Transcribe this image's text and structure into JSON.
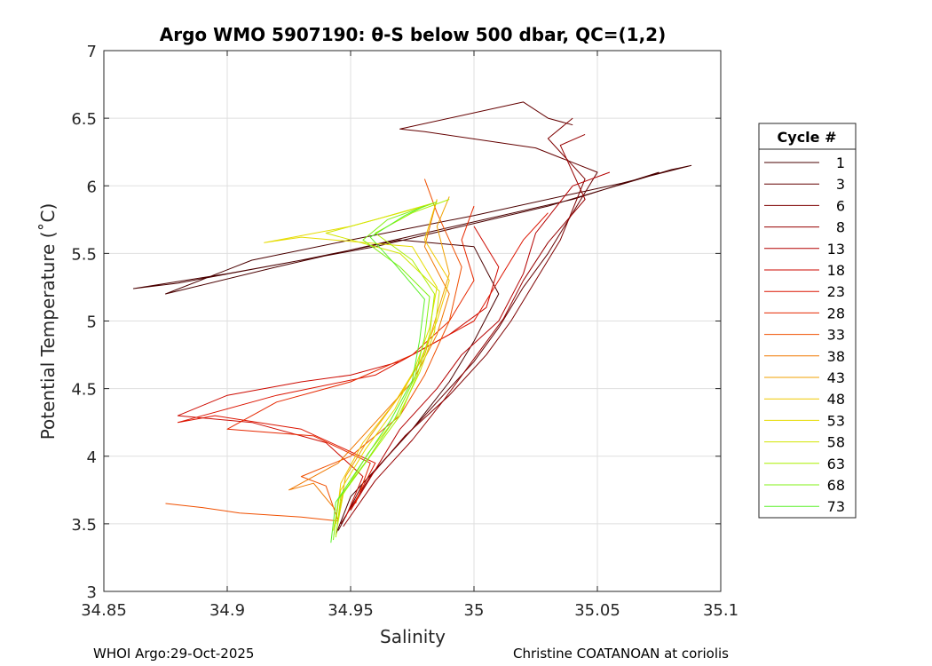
{
  "chart_data": {
    "type": "line",
    "title": "Argo WMO 5907190: θ-S below 500 dbar,  QC=(1,2)",
    "xlabel": "Salinity",
    "ylabel": "Potential Temperature (˚C)",
    "xlim": [
      34.85,
      35.1
    ],
    "ylim": [
      3,
      7
    ],
    "xticks": [
      34.85,
      34.9,
      34.95,
      35,
      35.05,
      35.1
    ],
    "xtick_labels": [
      "34.85",
      "34.9",
      "34.95",
      "35",
      "35.05",
      "35.1"
    ],
    "yticks": [
      3,
      3.5,
      4,
      4.5,
      5,
      5.5,
      6,
      6.5,
      7
    ],
    "ytick_labels": [
      "3",
      "3.5",
      "4",
      "4.5",
      "5",
      "5.5",
      "6",
      "6.5",
      "7"
    ],
    "grid": true,
    "legend_title": "Cycle #",
    "legend_position": "outside-right",
    "series": [
      {
        "name": "1",
        "color": "#4a0000",
        "points": [
          [
            34.944,
            3.42
          ],
          [
            34.95,
            3.7
          ],
          [
            34.96,
            3.9
          ],
          [
            34.975,
            4.2
          ],
          [
            34.99,
            4.55
          ],
          [
            35.0,
            4.85
          ],
          [
            35.01,
            5.2
          ],
          [
            35.0,
            5.55
          ],
          [
            34.97,
            5.6
          ],
          [
            34.93,
            5.45
          ],
          [
            34.88,
            5.28
          ],
          [
            34.862,
            5.24
          ],
          [
            34.9,
            5.35
          ],
          [
            34.96,
            5.55
          ],
          [
            35.03,
            5.85
          ],
          [
            35.08,
            6.12
          ],
          [
            35.088,
            6.15
          ],
          [
            35.06,
            6.02
          ],
          [
            35.0,
            5.78
          ],
          [
            34.95,
            5.6
          ],
          [
            34.91,
            5.45
          ],
          [
            34.875,
            5.2
          ],
          [
            34.92,
            5.4
          ],
          [
            34.98,
            5.65
          ],
          [
            35.04,
            5.9
          ],
          [
            35.075,
            6.1
          ]
        ]
      },
      {
        "name": "3",
        "color": "#640000",
        "points": [
          [
            34.945,
            3.45
          ],
          [
            34.955,
            3.8
          ],
          [
            34.97,
            4.1
          ],
          [
            34.985,
            4.4
          ],
          [
            35.0,
            4.7
          ],
          [
            35.01,
            4.95
          ],
          [
            35.02,
            5.25
          ],
          [
            35.03,
            5.5
          ],
          [
            35.04,
            5.8
          ],
          [
            35.05,
            6.1
          ],
          [
            35.025,
            6.28
          ],
          [
            34.98,
            6.4
          ],
          [
            34.97,
            6.42
          ],
          [
            35.02,
            6.62
          ],
          [
            35.03,
            6.5
          ],
          [
            35.04,
            6.45
          ]
        ]
      },
      {
        "name": "6",
        "color": "#7d0000",
        "points": [
          [
            34.946,
            3.5
          ],
          [
            34.958,
            3.85
          ],
          [
            34.972,
            4.15
          ],
          [
            34.99,
            4.45
          ],
          [
            35.005,
            4.75
          ],
          [
            35.015,
            5.0
          ],
          [
            35.025,
            5.3
          ],
          [
            35.035,
            5.6
          ],
          [
            35.045,
            6.05
          ],
          [
            35.03,
            6.35
          ],
          [
            35.04,
            6.5
          ]
        ]
      },
      {
        "name": "8",
        "color": "#960000",
        "points": [
          [
            34.947,
            3.48
          ],
          [
            34.96,
            3.82
          ],
          [
            34.975,
            4.12
          ],
          [
            34.988,
            4.42
          ],
          [
            35.0,
            4.72
          ],
          [
            35.012,
            5.02
          ],
          [
            35.02,
            5.3
          ],
          [
            35.03,
            5.58
          ],
          [
            35.045,
            5.9
          ],
          [
            35.035,
            6.3
          ],
          [
            35.045,
            6.38
          ]
        ]
      },
      {
        "name": "13",
        "color": "#b40000",
        "points": [
          [
            34.95,
            3.6
          ],
          [
            34.96,
            3.9
          ],
          [
            34.97,
            4.2
          ],
          [
            34.985,
            4.5
          ],
          [
            34.995,
            4.75
          ],
          [
            35.01,
            5.0
          ],
          [
            35.02,
            5.35
          ],
          [
            35.025,
            5.65
          ],
          [
            35.04,
            6.0
          ],
          [
            35.055,
            6.1
          ]
        ]
      },
      {
        "name": "18",
        "color": "#cd0a00",
        "points": [
          [
            34.948,
            3.55
          ],
          [
            34.955,
            3.85
          ],
          [
            34.94,
            4.1
          ],
          [
            34.91,
            4.25
          ],
          [
            34.88,
            4.3
          ],
          [
            34.9,
            4.45
          ],
          [
            34.93,
            4.55
          ],
          [
            34.95,
            4.6
          ],
          [
            34.97,
            4.7
          ],
          [
            34.99,
            4.9
          ],
          [
            35.005,
            5.1
          ],
          [
            35.01,
            5.4
          ],
          [
            35.0,
            5.7
          ]
        ]
      },
      {
        "name": "23",
        "color": "#dc1400",
        "points": [
          [
            34.95,
            3.6
          ],
          [
            34.96,
            3.95
          ],
          [
            34.93,
            4.2
          ],
          [
            34.895,
            4.3
          ],
          [
            34.88,
            4.25
          ],
          [
            34.92,
            4.45
          ],
          [
            34.96,
            4.6
          ],
          [
            34.98,
            4.8
          ],
          [
            35.0,
            5.0
          ],
          [
            35.01,
            5.3
          ],
          [
            35.02,
            5.6
          ],
          [
            35.03,
            5.8
          ]
        ]
      },
      {
        "name": "28",
        "color": "#e62800",
        "points": [
          [
            34.952,
            3.65
          ],
          [
            34.958,
            3.95
          ],
          [
            34.935,
            4.15
          ],
          [
            34.9,
            4.2
          ],
          [
            34.92,
            4.4
          ],
          [
            34.95,
            4.55
          ],
          [
            34.975,
            4.75
          ],
          [
            34.99,
            5.0
          ],
          [
            35.0,
            5.3
          ],
          [
            34.995,
            5.6
          ],
          [
            35.0,
            5.85
          ]
        ]
      },
      {
        "name": "33",
        "color": "#f05000",
        "points": [
          [
            34.875,
            3.65
          ],
          [
            34.89,
            3.62
          ],
          [
            34.905,
            3.58
          ],
          [
            34.93,
            3.55
          ],
          [
            34.945,
            3.52
          ],
          [
            34.94,
            3.78
          ],
          [
            34.93,
            3.85
          ],
          [
            34.95,
            4.0
          ],
          [
            34.97,
            4.3
          ],
          [
            34.98,
            4.6
          ],
          [
            34.99,
            5.0
          ],
          [
            34.995,
            5.4
          ],
          [
            34.985,
            5.8
          ],
          [
            34.98,
            6.05
          ]
        ]
      },
      {
        "name": "38",
        "color": "#f07800",
        "points": [
          [
            34.944,
            3.6
          ],
          [
            34.935,
            3.8
          ],
          [
            34.925,
            3.75
          ],
          [
            34.945,
            3.95
          ],
          [
            34.96,
            4.25
          ],
          [
            34.975,
            4.55
          ],
          [
            34.985,
            4.9
          ],
          [
            34.99,
            5.2
          ],
          [
            34.98,
            5.55
          ],
          [
            34.985,
            5.9
          ]
        ]
      },
      {
        "name": "43",
        "color": "#f0a000",
        "points": [
          [
            34.945,
            3.55
          ],
          [
            34.948,
            3.85
          ],
          [
            34.958,
            4.15
          ],
          [
            34.97,
            4.45
          ],
          [
            34.98,
            4.75
          ],
          [
            34.985,
            5.05
          ],
          [
            34.99,
            5.35
          ],
          [
            34.985,
            5.7
          ],
          [
            34.99,
            5.92
          ]
        ]
      },
      {
        "name": "48",
        "color": "#f0c800",
        "points": [
          [
            34.944,
            3.5
          ],
          [
            34.946,
            3.8
          ],
          [
            34.955,
            4.1
          ],
          [
            34.968,
            4.4
          ],
          [
            34.978,
            4.7
          ],
          [
            34.985,
            5.0
          ],
          [
            34.99,
            5.3
          ],
          [
            34.98,
            5.6
          ],
          [
            34.985,
            5.9
          ]
        ]
      },
      {
        "name": "53",
        "color": "#e6dc00",
        "points": [
          [
            34.943,
            3.45
          ],
          [
            34.946,
            3.75
          ],
          [
            34.956,
            4.05
          ],
          [
            34.968,
            4.35
          ],
          [
            34.976,
            4.65
          ],
          [
            34.982,
            4.95
          ],
          [
            34.985,
            5.25
          ],
          [
            34.975,
            5.55
          ],
          [
            34.93,
            5.62
          ],
          [
            34.915,
            5.58
          ],
          [
            34.95,
            5.7
          ],
          [
            34.98,
            5.85
          ]
        ]
      },
      {
        "name": "58",
        "color": "#d2e600",
        "points": [
          [
            34.944,
            3.42
          ],
          [
            34.947,
            3.72
          ],
          [
            34.957,
            4.02
          ],
          [
            34.97,
            4.32
          ],
          [
            34.978,
            4.62
          ],
          [
            34.984,
            4.92
          ],
          [
            34.986,
            5.22
          ],
          [
            34.97,
            5.5
          ],
          [
            34.94,
            5.65
          ],
          [
            34.96,
            5.75
          ],
          [
            34.985,
            5.88
          ]
        ]
      },
      {
        "name": "63",
        "color": "#aaf000",
        "points": [
          [
            34.944,
            3.4
          ],
          [
            34.946,
            3.7
          ],
          [
            34.958,
            4.0
          ],
          [
            34.97,
            4.3
          ],
          [
            34.977,
            4.6
          ],
          [
            34.982,
            4.9
          ],
          [
            34.984,
            5.2
          ],
          [
            34.975,
            5.45
          ],
          [
            34.96,
            5.65
          ],
          [
            34.975,
            5.8
          ],
          [
            34.99,
            5.9
          ]
        ]
      },
      {
        "name": "68",
        "color": "#82f014",
        "points": [
          [
            34.943,
            3.38
          ],
          [
            34.945,
            3.68
          ],
          [
            34.957,
            3.98
          ],
          [
            34.968,
            4.28
          ],
          [
            34.976,
            4.58
          ],
          [
            34.98,
            4.88
          ],
          [
            34.982,
            5.18
          ],
          [
            34.97,
            5.4
          ],
          [
            34.955,
            5.6
          ],
          [
            34.965,
            5.75
          ],
          [
            34.985,
            5.88
          ]
        ]
      },
      {
        "name": "73",
        "color": "#5af028",
        "points": [
          [
            34.942,
            3.36
          ],
          [
            34.944,
            3.66
          ],
          [
            34.955,
            3.96
          ],
          [
            34.966,
            4.26
          ],
          [
            34.975,
            4.56
          ],
          [
            34.978,
            4.86
          ],
          [
            34.98,
            5.16
          ],
          [
            34.968,
            5.42
          ],
          [
            34.958,
            5.62
          ],
          [
            34.972,
            5.78
          ],
          [
            34.98,
            5.85
          ]
        ]
      }
    ]
  },
  "footer": {
    "left": "WHOI Argo:29-Oct-2025",
    "right": "Christine COATANOAN at coriolis"
  }
}
